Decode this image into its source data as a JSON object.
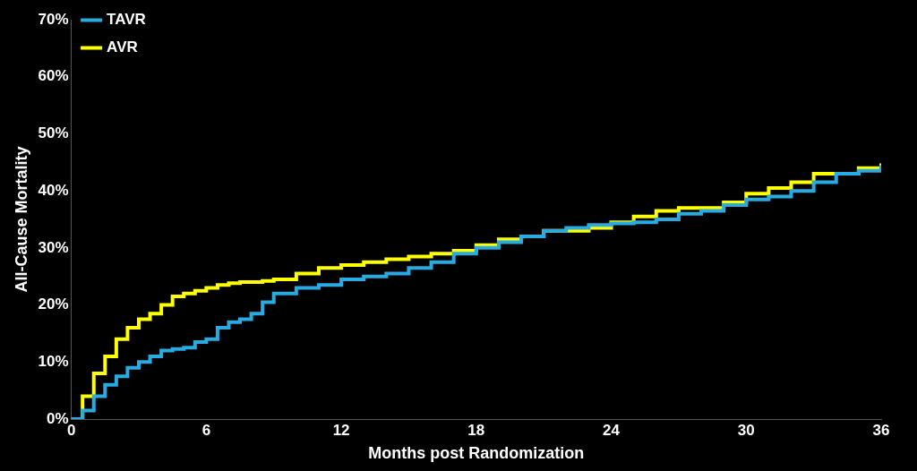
{
  "chart_data": {
    "type": "line",
    "x_label": "Months post Randomization",
    "y_label": "All-Cause Mortality",
    "x": [
      0,
      0.5,
      1,
      1.5,
      2,
      2.5,
      3,
      3.5,
      4,
      4.5,
      5,
      5.5,
      6,
      6.5,
      7,
      7.5,
      8,
      8.5,
      9,
      10,
      11,
      12,
      13,
      14,
      15,
      16,
      17,
      18,
      19,
      20,
      21,
      22,
      23,
      24,
      25,
      26,
      27,
      28,
      29,
      30,
      31,
      32,
      33,
      34,
      35,
      36
    ],
    "series": [
      {
        "name": "TAVR",
        "color": "#29abe2",
        "line_style": "step",
        "values": [
          0,
          1.5,
          4,
          6,
          7.5,
          9,
          10,
          11,
          12,
          12.3,
          12.5,
          13.5,
          14,
          16,
          17,
          17.5,
          18.5,
          20.5,
          22,
          23,
          23.5,
          24.5,
          25,
          25.5,
          26.5,
          27.5,
          29,
          30,
          31,
          32,
          33,
          33.5,
          34,
          34.3,
          34.5,
          35,
          36,
          36.5,
          37.5,
          38.5,
          39,
          40,
          41.5,
          43,
          43.5,
          44.5
        ]
      },
      {
        "name": "AVR",
        "color": "#ffff00",
        "line_style": "step",
        "values": [
          0,
          4,
          8,
          11,
          14,
          16,
          17.5,
          18.5,
          20,
          21.5,
          22,
          22.5,
          23,
          23.5,
          23.8,
          24,
          24,
          24.2,
          24.5,
          25.5,
          26.5,
          27,
          27.5,
          28,
          28.5,
          29,
          29.5,
          30.5,
          31.5,
          32,
          33,
          33,
          33.5,
          34.5,
          35.5,
          36.5,
          37,
          37,
          38,
          39.5,
          40.5,
          41.5,
          43,
          43,
          44,
          44.8
        ]
      }
    ],
    "xlim": [
      0,
      36
    ],
    "xticks": [
      0,
      6,
      12,
      18,
      24,
      30,
      36
    ],
    "ylim": [
      0,
      70
    ],
    "yticks": [
      {
        "value": 0,
        "label": "0%"
      },
      {
        "value": 10,
        "label": "10%"
      },
      {
        "value": 20,
        "label": "20%"
      },
      {
        "value": 30,
        "label": "30%"
      },
      {
        "value": 40,
        "label": "40%"
      },
      {
        "value": 50,
        "label": "50%"
      },
      {
        "value": 60,
        "label": "60%"
      },
      {
        "value": 70,
        "label": "70%"
      }
    ],
    "grid": false,
    "legend": "upper left"
  }
}
